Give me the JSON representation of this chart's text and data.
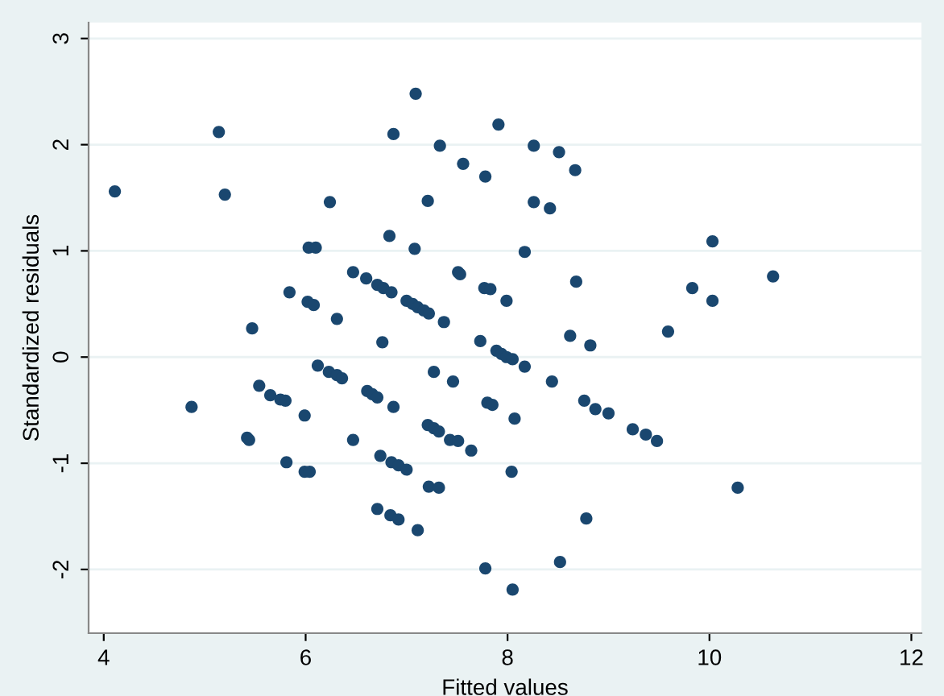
{
  "chart_data": {
    "type": "scatter",
    "xlabel": "Fitted values",
    "ylabel": "Standardized residuals",
    "xlim": [
      3.85,
      12.1
    ],
    "ylim": [
      -2.6,
      3.15
    ],
    "xticks": [
      4,
      6,
      8,
      10,
      12
    ],
    "yticks": [
      -2,
      -1,
      0,
      1,
      2,
      3
    ],
    "grid": "y",
    "marker": "circle",
    "series": [
      {
        "color": "#1a476f",
        "x": [
          4.11,
          5.14,
          5.2,
          6.24,
          7.09,
          6.87,
          7.33,
          7.56,
          7.78,
          7.91,
          8.26,
          8.51,
          8.67,
          7.21,
          8.26,
          8.42,
          6.83,
          6.03,
          6.1,
          7.08,
          8.17,
          10.03,
          6.47,
          6.6,
          6.71,
          6.77,
          6.85,
          7.0,
          7.06,
          7.11,
          7.17,
          7.22,
          7.37,
          7.51,
          7.53,
          7.77,
          7.83,
          7.99,
          5.84,
          6.02,
          6.08,
          6.31,
          5.47,
          6.76,
          7.73,
          7.89,
          7.94,
          7.99,
          8.05,
          8.17,
          8.68,
          9.83,
          10.03,
          10.63,
          8.62,
          8.82,
          9.59,
          7.27,
          7.46,
          8.44,
          4.87,
          5.54,
          5.65,
          5.75,
          5.8,
          5.99,
          6.12,
          6.23,
          6.31,
          6.36,
          6.61,
          6.66,
          6.71,
          6.87,
          5.42,
          5.44,
          6.47,
          7.21,
          7.27,
          7.32,
          7.43,
          7.51,
          7.64,
          7.8,
          7.85,
          8.07,
          5.81,
          5.99,
          6.04,
          6.74,
          6.85,
          6.92,
          7.0,
          7.22,
          7.32,
          6.71,
          6.84,
          6.92,
          7.11,
          7.78,
          8.04,
          8.05,
          8.76,
          8.87,
          9.0,
          9.24,
          9.37,
          9.48,
          10.28,
          8.78,
          8.52
        ],
        "values": [
          1.56,
          2.12,
          1.53,
          1.46,
          2.48,
          2.1,
          1.99,
          1.82,
          1.7,
          2.19,
          1.99,
          1.93,
          1.76,
          1.47,
          1.46,
          1.4,
          1.14,
          1.03,
          1.03,
          1.02,
          0.99,
          1.09,
          0.8,
          0.74,
          0.68,
          0.65,
          0.61,
          0.53,
          0.5,
          0.47,
          0.44,
          0.41,
          0.33,
          0.8,
          0.78,
          0.65,
          0.64,
          0.53,
          0.61,
          0.52,
          0.49,
          0.36,
          0.27,
          0.14,
          0.15,
          0.06,
          0.03,
          0.0,
          -0.02,
          -0.09,
          0.71,
          0.65,
          0.53,
          0.76,
          0.2,
          0.11,
          0.24,
          -0.14,
          -0.23,
          -0.23,
          -0.47,
          -0.27,
          -0.36,
          -0.4,
          -0.41,
          -0.55,
          -0.08,
          -0.14,
          -0.17,
          -0.2,
          -0.32,
          -0.35,
          -0.38,
          -0.47,
          -0.76,
          -0.78,
          -0.78,
          -0.64,
          -0.67,
          -0.7,
          -0.78,
          -0.79,
          -0.88,
          -0.43,
          -0.45,
          -0.58,
          -0.99,
          -1.08,
          -1.08,
          -0.93,
          -0.99,
          -1.02,
          -1.06,
          -1.22,
          -1.23,
          -1.43,
          -1.49,
          -1.53,
          -1.63,
          -1.99,
          -1.08,
          -2.19,
          -0.41,
          -0.49,
          -0.53,
          -0.68,
          -0.73,
          -0.79,
          -1.23,
          -1.52,
          -1.93
        ]
      }
    ]
  }
}
